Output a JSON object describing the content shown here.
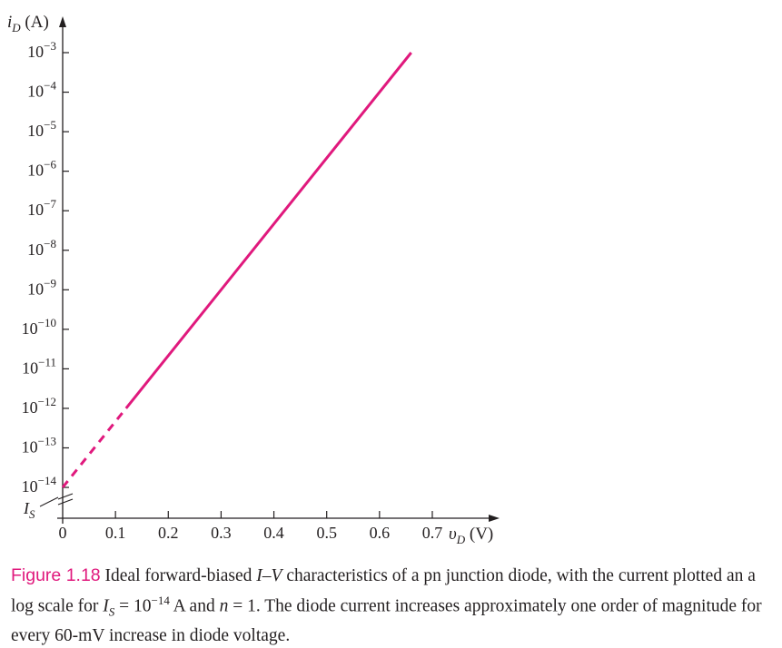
{
  "chart_data": {
    "type": "line",
    "y_scale": "log",
    "y_axis_title": {
      "var": "i",
      "sub": "D",
      "unit": "(A)"
    },
    "x_axis_title": {
      "var": "υ",
      "sub": "D",
      "unit": "(V)"
    },
    "x_ticks": [
      {
        "value": 0,
        "label": "0"
      },
      {
        "value": 0.1,
        "label": "0.1"
      },
      {
        "value": 0.2,
        "label": "0.2"
      },
      {
        "value": 0.3,
        "label": "0.3"
      },
      {
        "value": 0.4,
        "label": "0.4"
      },
      {
        "value": 0.5,
        "label": "0.5"
      },
      {
        "value": 0.6,
        "label": "0.6"
      },
      {
        "value": 0.7,
        "label": "0.7"
      }
    ],
    "y_ticks": [
      {
        "exp": -3,
        "base": "10",
        "sup": "−3"
      },
      {
        "exp": -4,
        "base": "10",
        "sup": "−4"
      },
      {
        "exp": -5,
        "base": "10",
        "sup": "−5"
      },
      {
        "exp": -6,
        "base": "10",
        "sup": "−6"
      },
      {
        "exp": -7,
        "base": "10",
        "sup": "−7"
      },
      {
        "exp": -8,
        "base": "10",
        "sup": "−8"
      },
      {
        "exp": -9,
        "base": "10",
        "sup": "−9"
      },
      {
        "exp": -10,
        "base": "10",
        "sup": "−10"
      },
      {
        "exp": -11,
        "base": "10",
        "sup": "−11"
      },
      {
        "exp": -12,
        "base": "10",
        "sup": "−12"
      },
      {
        "exp": -13,
        "base": "10",
        "sup": "−13"
      },
      {
        "exp": -14,
        "base": "10",
        "sup": "−14"
      }
    ],
    "is_label": {
      "var": "I",
      "sub": "S"
    },
    "xlim": [
      0,
      0.7
    ],
    "ylim_exp": [
      -14,
      -3
    ],
    "series": [
      {
        "style": "dashed",
        "color": "#e0197d",
        "x": [
          0.0,
          0.12
        ],
        "y": [
          1e-14,
          1e-12
        ]
      },
      {
        "style": "solid",
        "color": "#e0197d",
        "x": [
          0.12,
          0.66
        ],
        "y": [
          1e-12,
          0.001
        ]
      }
    ],
    "grid": false
  },
  "caption": {
    "label": "Figure 1.18",
    "text_1": " Ideal forward-biased ",
    "iv": "I–V",
    "text_2": " characteristics of a pn junction diode, with the current plotted an a log scale for ",
    "is_var": "I",
    "is_sub": "S",
    "eq_1": " = 10",
    "eq_sup": "−14",
    "text_3": " A and ",
    "n_var": "n",
    "text_4": " = 1. The diode current increases approximately one order of magnitude for every 60-mV increase in diode voltage."
  },
  "colors": {
    "curve": "#e0197d",
    "axis": "#231f20",
    "caption_label": "#e0197d"
  }
}
